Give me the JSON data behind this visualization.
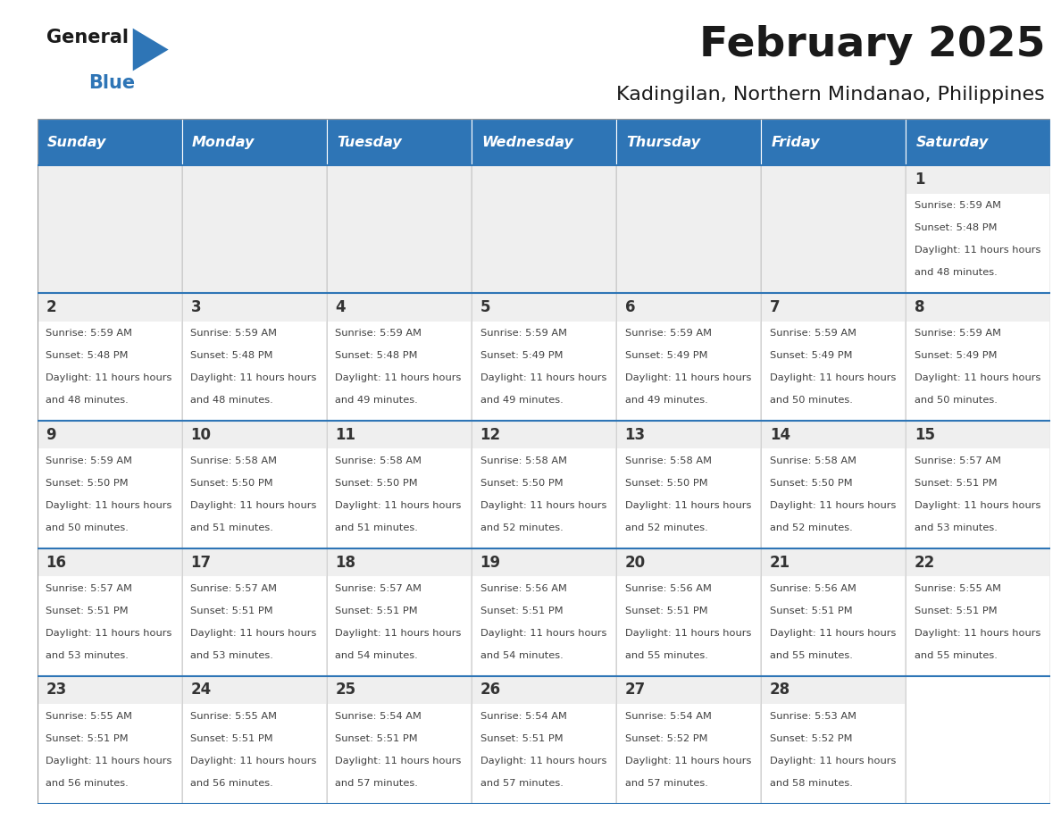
{
  "title": "February 2025",
  "subtitle": "Kadingilan, Northern Mindanao, Philippines",
  "days_of_week": [
    "Sunday",
    "Monday",
    "Tuesday",
    "Wednesday",
    "Thursday",
    "Friday",
    "Saturday"
  ],
  "header_bg": "#2E75B6",
  "header_text_color": "#FFFFFF",
  "cell_bg_white": "#FFFFFF",
  "cell_bg_gray": "#EFEFEF",
  "divider_color": "#2E75B6",
  "day_number_color": "#333333",
  "info_text_color": "#404040",
  "title_color": "#1A1A1A",
  "subtitle_color": "#1A1A1A",
  "logo_black": "#1A1A1A",
  "logo_blue": "#2E75B6",
  "calendar": [
    [
      {
        "day": null,
        "sunrise": null,
        "sunset": null,
        "daylight": null
      },
      {
        "day": null,
        "sunrise": null,
        "sunset": null,
        "daylight": null
      },
      {
        "day": null,
        "sunrise": null,
        "sunset": null,
        "daylight": null
      },
      {
        "day": null,
        "sunrise": null,
        "sunset": null,
        "daylight": null
      },
      {
        "day": null,
        "sunrise": null,
        "sunset": null,
        "daylight": null
      },
      {
        "day": null,
        "sunrise": null,
        "sunset": null,
        "daylight": null
      },
      {
        "day": 1,
        "sunrise": "5:59 AM",
        "sunset": "5:48 PM",
        "daylight": "11 hours and 48 minutes."
      }
    ],
    [
      {
        "day": 2,
        "sunrise": "5:59 AM",
        "sunset": "5:48 PM",
        "daylight": "11 hours and 48 minutes."
      },
      {
        "day": 3,
        "sunrise": "5:59 AM",
        "sunset": "5:48 PM",
        "daylight": "11 hours and 48 minutes."
      },
      {
        "day": 4,
        "sunrise": "5:59 AM",
        "sunset": "5:48 PM",
        "daylight": "11 hours and 49 minutes."
      },
      {
        "day": 5,
        "sunrise": "5:59 AM",
        "sunset": "5:49 PM",
        "daylight": "11 hours and 49 minutes."
      },
      {
        "day": 6,
        "sunrise": "5:59 AM",
        "sunset": "5:49 PM",
        "daylight": "11 hours and 49 minutes."
      },
      {
        "day": 7,
        "sunrise": "5:59 AM",
        "sunset": "5:49 PM",
        "daylight": "11 hours and 50 minutes."
      },
      {
        "day": 8,
        "sunrise": "5:59 AM",
        "sunset": "5:49 PM",
        "daylight": "11 hours and 50 minutes."
      }
    ],
    [
      {
        "day": 9,
        "sunrise": "5:59 AM",
        "sunset": "5:50 PM",
        "daylight": "11 hours and 50 minutes."
      },
      {
        "day": 10,
        "sunrise": "5:58 AM",
        "sunset": "5:50 PM",
        "daylight": "11 hours and 51 minutes."
      },
      {
        "day": 11,
        "sunrise": "5:58 AM",
        "sunset": "5:50 PM",
        "daylight": "11 hours and 51 minutes."
      },
      {
        "day": 12,
        "sunrise": "5:58 AM",
        "sunset": "5:50 PM",
        "daylight": "11 hours and 52 minutes."
      },
      {
        "day": 13,
        "sunrise": "5:58 AM",
        "sunset": "5:50 PM",
        "daylight": "11 hours and 52 minutes."
      },
      {
        "day": 14,
        "sunrise": "5:58 AM",
        "sunset": "5:50 PM",
        "daylight": "11 hours and 52 minutes."
      },
      {
        "day": 15,
        "sunrise": "5:57 AM",
        "sunset": "5:51 PM",
        "daylight": "11 hours and 53 minutes."
      }
    ],
    [
      {
        "day": 16,
        "sunrise": "5:57 AM",
        "sunset": "5:51 PM",
        "daylight": "11 hours and 53 minutes."
      },
      {
        "day": 17,
        "sunrise": "5:57 AM",
        "sunset": "5:51 PM",
        "daylight": "11 hours and 53 minutes."
      },
      {
        "day": 18,
        "sunrise": "5:57 AM",
        "sunset": "5:51 PM",
        "daylight": "11 hours and 54 minutes."
      },
      {
        "day": 19,
        "sunrise": "5:56 AM",
        "sunset": "5:51 PM",
        "daylight": "11 hours and 54 minutes."
      },
      {
        "day": 20,
        "sunrise": "5:56 AM",
        "sunset": "5:51 PM",
        "daylight": "11 hours and 55 minutes."
      },
      {
        "day": 21,
        "sunrise": "5:56 AM",
        "sunset": "5:51 PM",
        "daylight": "11 hours and 55 minutes."
      },
      {
        "day": 22,
        "sunrise": "5:55 AM",
        "sunset": "5:51 PM",
        "daylight": "11 hours and 55 minutes."
      }
    ],
    [
      {
        "day": 23,
        "sunrise": "5:55 AM",
        "sunset": "5:51 PM",
        "daylight": "11 hours and 56 minutes."
      },
      {
        "day": 24,
        "sunrise": "5:55 AM",
        "sunset": "5:51 PM",
        "daylight": "11 hours and 56 minutes."
      },
      {
        "day": 25,
        "sunrise": "5:54 AM",
        "sunset": "5:51 PM",
        "daylight": "11 hours and 57 minutes."
      },
      {
        "day": 26,
        "sunrise": "5:54 AM",
        "sunset": "5:51 PM",
        "daylight": "11 hours and 57 minutes."
      },
      {
        "day": 27,
        "sunrise": "5:54 AM",
        "sunset": "5:52 PM",
        "daylight": "11 hours and 57 minutes."
      },
      {
        "day": 28,
        "sunrise": "5:53 AM",
        "sunset": "5:52 PM",
        "daylight": "11 hours and 58 minutes."
      },
      {
        "day": null,
        "sunrise": null,
        "sunset": null,
        "daylight": null
      }
    ]
  ]
}
